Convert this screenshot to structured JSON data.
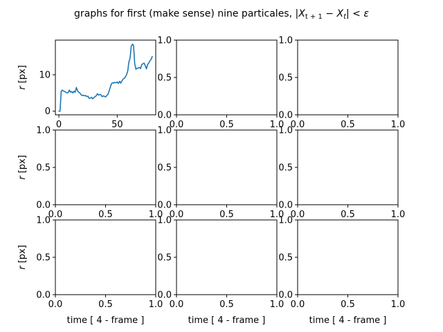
{
  "figure": {
    "title_text": "graphs for first (make sense) nine particales, ",
    "title_math": {
      "bar1": "|",
      "X1": "X",
      "sub1": "t + 1",
      "minus": " − ",
      "X2": "X",
      "sub2": "t",
      "bar2": "|",
      "lt": " < ",
      "eps": "ε"
    }
  },
  "colors": {
    "series": "#1f77b4",
    "frame": "#000000",
    "background": "#ffffff"
  },
  "chart_data": [
    {
      "type": "line",
      "row": 0,
      "col": 0,
      "xlim": [
        -3,
        83
      ],
      "ylim": [
        -1,
        19.5
      ],
      "xticks": [
        0,
        50
      ],
      "yticks": [
        0,
        10
      ],
      "xlabel": "",
      "ylabel": "r [px]",
      "series": [
        {
          "x": [
            0,
            1,
            2,
            3,
            4,
            5,
            6,
            7,
            8,
            9,
            10,
            11,
            12,
            13,
            14,
            15,
            16,
            17,
            18,
            19,
            20,
            21,
            22,
            23,
            24,
            25,
            26,
            27,
            28,
            29,
            30,
            31,
            32,
            33,
            34,
            35,
            36,
            37,
            38,
            39,
            40,
            41,
            42,
            43,
            44,
            45,
            46,
            47,
            48,
            49,
            50,
            51,
            52,
            53,
            54,
            55,
            56,
            57,
            58,
            59,
            60,
            61,
            62,
            63,
            64,
            65,
            66,
            67,
            68,
            69,
            70,
            71,
            72,
            73,
            74,
            75,
            76,
            77,
            78,
            79,
            80
          ],
          "y": [
            0,
            0,
            5.5,
            5.8,
            5.5,
            5.4,
            5.2,
            5.0,
            5.1,
            5.8,
            5.2,
            5.4,
            5.0,
            5.5,
            5.2,
            6.5,
            5.6,
            5.2,
            5.0,
            4.5,
            4.3,
            4.4,
            4.2,
            4.3,
            4.0,
            4.1,
            3.5,
            3.6,
            3.8,
            3.4,
            3.7,
            4.0,
            4.2,
            4.8,
            4.4,
            4.6,
            4.5,
            4.0,
            4.2,
            4.1,
            3.9,
            4.3,
            4.6,
            5.5,
            6.5,
            7.5,
            7.8,
            7.7,
            7.9,
            7.8,
            8.0,
            7.6,
            8.2,
            7.7,
            8.3,
            8.8,
            9.0,
            9.4,
            10.0,
            11.0,
            13.5,
            14.5,
            17.8,
            18.4,
            18.0,
            13.0,
            11.5,
            11.8,
            11.8,
            12.0,
            11.7,
            12.8,
            13.0,
            13.2,
            12.5,
            11.6,
            12.8,
            13.2,
            13.8,
            14.2,
            15.0
          ]
        }
      ]
    },
    {
      "type": "line",
      "row": 0,
      "col": 1,
      "xlim": [
        0,
        1
      ],
      "ylim": [
        0,
        1
      ],
      "xticks": [
        "0.0",
        "0.5",
        "1.0"
      ],
      "yticks": [
        "0.0",
        "0.5",
        "1.0"
      ],
      "xlabel": "",
      "ylabel": "",
      "series": []
    },
    {
      "type": "line",
      "row": 0,
      "col": 2,
      "xlim": [
        0,
        1
      ],
      "ylim": [
        0,
        1
      ],
      "xticks": [
        "0.0",
        "0.5",
        "1.0"
      ],
      "yticks": [
        "0.0",
        "0.5",
        "1.0"
      ],
      "xlabel": "",
      "ylabel": "",
      "series": []
    },
    {
      "type": "line",
      "row": 1,
      "col": 0,
      "xlim": [
        0,
        1
      ],
      "ylim": [
        0,
        1
      ],
      "xticks": [
        "0.0",
        "0.5",
        "1.0"
      ],
      "yticks": [
        "0.0",
        "0.5",
        "1.0"
      ],
      "xlabel": "",
      "ylabel": "r [px]",
      "series": []
    },
    {
      "type": "line",
      "row": 1,
      "col": 1,
      "xlim": [
        0,
        1
      ],
      "ylim": [
        0,
        1
      ],
      "xticks": [
        "0.0",
        "0.5",
        "1.0"
      ],
      "yticks": [
        "0.0",
        "0.5",
        "1.0"
      ],
      "xlabel": "",
      "ylabel": "",
      "series": []
    },
    {
      "type": "line",
      "row": 1,
      "col": 2,
      "xlim": [
        0,
        1
      ],
      "ylim": [
        0,
        1
      ],
      "xticks": [
        "0.0",
        "0.5",
        "1.0"
      ],
      "yticks": [
        "0.0",
        "0.5",
        "1.0"
      ],
      "xlabel": "",
      "ylabel": "",
      "series": []
    },
    {
      "type": "line",
      "row": 2,
      "col": 0,
      "xlim": [
        0,
        1
      ],
      "ylim": [
        0,
        1
      ],
      "xticks": [
        "0.0",
        "0.5",
        "1.0"
      ],
      "yticks": [
        "0.0",
        "0.5",
        "1.0"
      ],
      "xlabel": "time [ 4 - frame ]",
      "ylabel": "r [px]",
      "series": []
    },
    {
      "type": "line",
      "row": 2,
      "col": 1,
      "xlim": [
        0,
        1
      ],
      "ylim": [
        0,
        1
      ],
      "xticks": [
        "0.0",
        "0.5",
        "1.0"
      ],
      "yticks": [
        "0.0",
        "0.5",
        "1.0"
      ],
      "xlabel": "time [ 4 - frame ]",
      "ylabel": "",
      "series": []
    },
    {
      "type": "line",
      "row": 2,
      "col": 2,
      "xlim": [
        0,
        1
      ],
      "ylim": [
        0,
        1
      ],
      "xticks": [
        "0.0",
        "0.5",
        "1.0"
      ],
      "yticks": [
        "0.0",
        "0.5",
        "1.0"
      ],
      "xlabel": "time [ 4 - frame ]",
      "ylabel": "",
      "series": []
    }
  ]
}
